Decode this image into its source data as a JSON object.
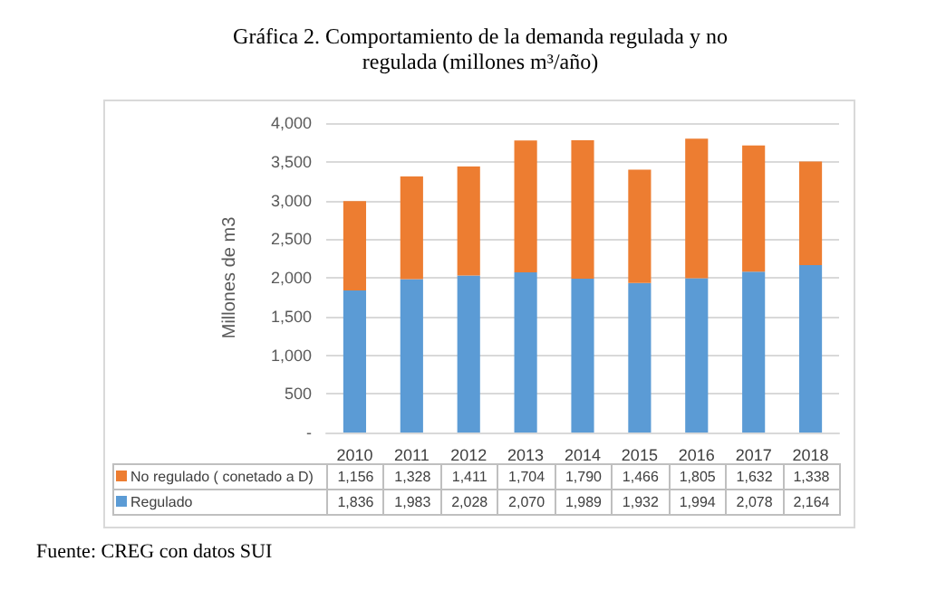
{
  "chart_data": {
    "type": "bar",
    "stacked": true,
    "title": "Gráfica 2. Comportamiento de la demanda regulada y no regulada (millones m³/año)",
    "ylabel": "Millones de m3",
    "categories": [
      "2010",
      "2011",
      "2012",
      "2013",
      "2014",
      "2015",
      "2016",
      "2017",
      "2018"
    ],
    "series": [
      {
        "name": "Regulado",
        "color": "#5b9bd5",
        "values": [
          1836,
          1983,
          2028,
          2070,
          1989,
          1932,
          1994,
          2078,
          2164
        ],
        "value_labels": [
          "1,836",
          "1,983",
          "2,028",
          "2,070",
          "1,989",
          "1,932",
          "1,994",
          "2,078",
          "2,164"
        ]
      },
      {
        "name": "No regulado ( conetado a D)",
        "color": "#ed7d31",
        "values": [
          1156,
          1328,
          1411,
          1704,
          1790,
          1466,
          1805,
          1632,
          1338
        ],
        "value_labels": [
          "1,156",
          "1,328",
          "1,411",
          "1,704",
          "1,790",
          "1,466",
          "1,805",
          "1,632",
          "1,338"
        ]
      }
    ],
    "ylim": [
      0,
      4000
    ],
    "yticks": [
      {
        "value": 0,
        "label": "-"
      },
      500,
      {
        "value": 1000,
        "label": "1,000"
      },
      {
        "value": 1500,
        "label": "1,500"
      },
      {
        "value": 2000,
        "label": "2,000"
      },
      {
        "value": 2500,
        "label": "2,500"
      },
      {
        "value": 3000,
        "label": "3,000"
      },
      {
        "value": 3500,
        "label": "3,500"
      },
      {
        "value": 4000,
        "label": "4,000"
      }
    ],
    "grid": "y",
    "legend": "bottom",
    "annotations": [
      "Fuente: CREG con datos SUI"
    ]
  }
}
